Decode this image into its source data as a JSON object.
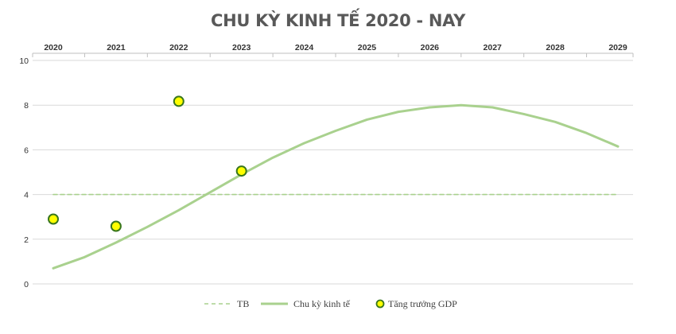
{
  "chart_data": {
    "type": "line",
    "title": "CHU KỲ KINH TẾ 2020 - NAY",
    "categories": [
      "2020",
      "2021",
      "2022",
      "2023",
      "2024",
      "2025",
      "2026",
      "2027",
      "2028",
      "2029"
    ],
    "y_ticks": [
      "0",
      "2",
      "4",
      "6",
      "8",
      "10"
    ],
    "ylim": [
      0,
      10
    ],
    "xlim": [
      2020,
      2029
    ],
    "grid": true,
    "x_axis_position": "top",
    "legend_position": "bottom",
    "series": [
      {
        "name": "TB",
        "style": "dashed",
        "color": "#a9d18e",
        "x": [
          2020,
          2029
        ],
        "y": [
          4,
          4
        ]
      },
      {
        "name": "Chu kỳ kinh tế",
        "style": "line",
        "color": "#a9d18e",
        "x": [
          2020,
          2020.5,
          2021,
          2021.5,
          2022,
          2022.5,
          2023,
          2023.5,
          2024,
          2024.5,
          2025,
          2025.5,
          2026,
          2026.5,
          2027,
          2027.5,
          2028,
          2028.5,
          2029
        ],
        "y": [
          0.7,
          1.2,
          1.85,
          2.55,
          3.3,
          4.1,
          4.9,
          5.65,
          6.3,
          6.85,
          7.35,
          7.7,
          7.9,
          8.0,
          7.9,
          7.6,
          7.25,
          6.75,
          6.15
        ]
      },
      {
        "name": "Tăng trưởng GDP",
        "style": "scatter",
        "color": "#ffff00",
        "edge_color": "#38761d",
        "x": [
          2020,
          2021,
          2022,
          2023
        ],
        "y": [
          2.9,
          2.58,
          8.17,
          5.05
        ]
      }
    ]
  }
}
